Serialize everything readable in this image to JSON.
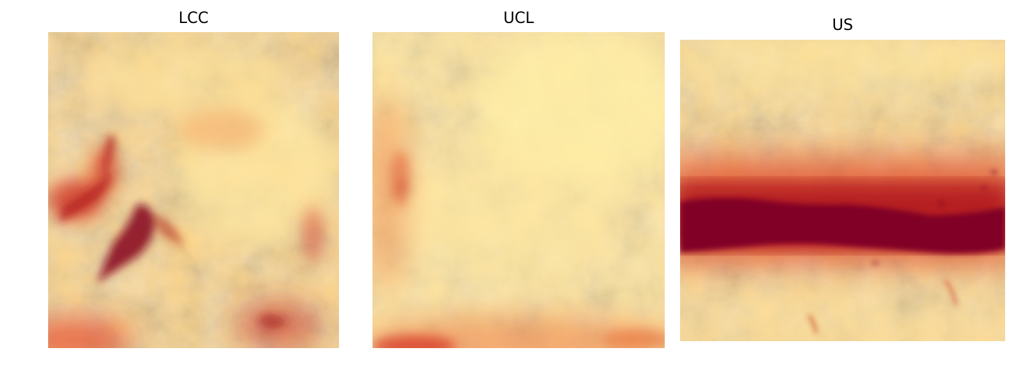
{
  "figure": {
    "panels": [
      {
        "title": "LCC"
      },
      {
        "title": "UCL"
      },
      {
        "title": "US"
      }
    ],
    "colormap": [
      "#fff0a0",
      "#fee08b",
      "#fdae61",
      "#f46d43",
      "#d73027",
      "#a50026",
      "#800026"
    ]
  }
}
